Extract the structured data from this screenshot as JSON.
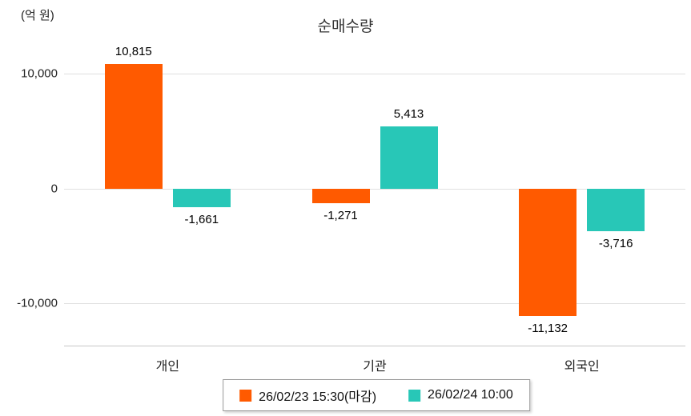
{
  "title": "순매수량",
  "y_unit_label": "(억 원)",
  "chart_data": {
    "type": "bar",
    "title": "순매수량",
    "ylabel": "(억 원)",
    "xlabel": "",
    "categories": [
      "개인",
      "기관",
      "외국인"
    ],
    "series": [
      {
        "name": "26/02/23 15:30(마감)",
        "color": "#ff5a00",
        "values": [
          10815,
          -1271,
          -11132
        ],
        "labels": [
          "10,815",
          "-1,271",
          "-11,132"
        ]
      },
      {
        "name": "26/02/24 10:00",
        "color": "#28c7b7",
        "values": [
          -1661,
          5413,
          -3716
        ],
        "labels": [
          "-1,661",
          "5,413",
          "-3,716"
        ]
      }
    ],
    "yticks": [
      {
        "value": 10000,
        "label": "10,000"
      },
      {
        "value": 0,
        "label": "0"
      },
      {
        "value": -10000,
        "label": "-10,000"
      }
    ],
    "ylim": [
      -13700,
      12800
    ],
    "grid": true,
    "legend_position": "bottom"
  }
}
